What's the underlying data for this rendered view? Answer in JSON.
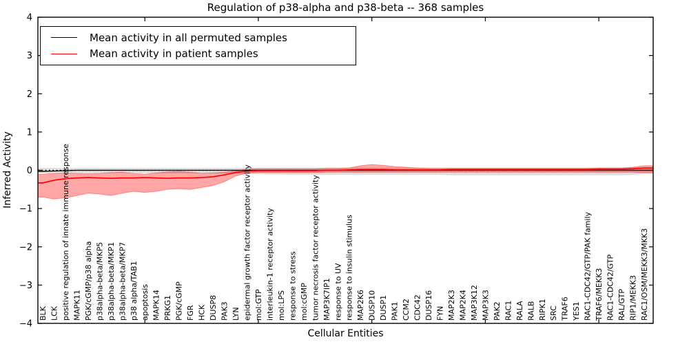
{
  "figure": {
    "title": "Regulation of p38-alpha and p38-beta -- 368 samples",
    "xlabel": "Cellular Entities",
    "ylabel": "Inferred Activity"
  },
  "chart_data": {
    "type": "line",
    "title": "Regulation of p38-alpha and p38-beta -- 368 samples",
    "xlabel": "Cellular Entities",
    "ylabel": "Inferred Activity",
    "ylim": [
      -4,
      4
    ],
    "y_ticks": [
      4,
      3,
      2,
      1,
      0,
      -1,
      -2,
      -3,
      -4
    ],
    "x_major_tick_indices": [
      9,
      19,
      29,
      39,
      49
    ],
    "grid": false,
    "legend_position": "upper left",
    "zero_line": {
      "style": "dotted",
      "color": "#000000",
      "y": 0
    },
    "categories": [
      "BLK",
      "LCK",
      "positive regulation of innate immune response",
      "MAPK11",
      "PGK/cGMP/p38 alpha",
      "p38alpha-beta/MKP5",
      "p38alpha-beta/MKP1",
      "p38alpha-beta/MKP7",
      "p38 alpha/TAB1",
      "apoptosis",
      "MAPK14",
      "PRKG1",
      "PGK/cGMP",
      "FGR",
      "HCK",
      "DUSP8",
      "PAK3",
      "LYN",
      "epidermal growth factor receptor activity",
      "mol:GTP",
      "interleukin-1 receptor activity",
      "mol:LPS",
      "response to stress",
      "mol:cGMP",
      "tumor necrosis factor receptor activity",
      "MAP3K7IP1",
      "response to UV",
      "response to insulin stimulus",
      "MAP2K6",
      "DUSP10",
      "DUSP1",
      "PAK1",
      "CCM2",
      "CDC42",
      "DUSP16",
      "FYN",
      "MAP2K3",
      "MAP2K4",
      "MAP3K12",
      "MAP3K3",
      "PAK2",
      "RAC1",
      "RALA",
      "RALB",
      "RIPK1",
      "SRC",
      "TRAF6",
      "YES1",
      "RAC1-CDC42/GTP/PAK family",
      "TRAF6/MEKK3",
      "RAC1-CDC42/GTP",
      "RAL/GTP",
      "RIP1/MEKK3",
      "RAC1/OSM/MEKK3/MKK3"
    ],
    "series": [
      {
        "name": "Mean activity in all permuted samples",
        "color": "#000000",
        "band_color": "rgba(0,0,0,0.13)",
        "mean": [
          -0.03,
          -0.02,
          -0.01,
          0,
          0,
          0,
          0,
          0,
          0,
          0,
          0,
          0,
          0,
          0,
          0,
          0,
          0,
          0,
          0,
          0,
          0,
          0,
          0,
          0,
          0,
          0,
          0,
          0,
          0,
          0,
          0,
          0,
          0,
          0,
          0,
          0,
          0,
          0,
          0,
          0,
          0,
          0,
          0,
          0,
          0,
          0,
          0,
          0,
          0,
          0,
          0,
          0,
          0,
          0
        ],
        "upper": [
          0.06,
          0.06,
          0.06,
          0.06,
          0.06,
          0.06,
          0.06,
          0.06,
          0.06,
          0.06,
          0.06,
          0.06,
          0.06,
          0.06,
          0.06,
          0.06,
          0.06,
          0.06,
          0.07,
          0.07,
          0.07,
          0.07,
          0.07,
          0.07,
          0.07,
          0.07,
          0.07,
          0.07,
          0.07,
          0.07,
          0.07,
          0.07,
          0.07,
          0.07,
          0.07,
          0.07,
          0.07,
          0.07,
          0.07,
          0.07,
          0.07,
          0.07,
          0.07,
          0.07,
          0.07,
          0.07,
          0.07,
          0.07,
          0.07,
          0.07,
          0.07,
          0.07,
          0.08,
          0.08
        ],
        "lower": [
          -0.07,
          -0.07,
          -0.07,
          -0.07,
          -0.07,
          -0.07,
          -0.07,
          -0.07,
          -0.07,
          -0.07,
          -0.08,
          -0.08,
          -0.08,
          -0.08,
          -0.08,
          -0.08,
          -0.09,
          -0.09,
          -0.1,
          -0.1,
          -0.11,
          -0.11,
          -0.12,
          -0.12,
          -0.12,
          -0.12,
          -0.12,
          -0.12,
          -0.12,
          -0.12,
          -0.12,
          -0.12,
          -0.12,
          -0.12,
          -0.12,
          -0.12,
          -0.13,
          -0.13,
          -0.13,
          -0.13,
          -0.13,
          -0.13,
          -0.13,
          -0.13,
          -0.13,
          -0.13,
          -0.13,
          -0.13,
          -0.13,
          -0.13,
          -0.13,
          -0.13,
          -0.12,
          -0.1
        ]
      },
      {
        "name": "Mean activity in patient samples",
        "color": "#ff0000",
        "band_color": "rgba(255,0,0,0.35)",
        "mean": [
          -0.33,
          -0.26,
          -0.22,
          -0.2,
          -0.19,
          -0.2,
          -0.21,
          -0.2,
          -0.2,
          -0.19,
          -0.2,
          -0.21,
          -0.2,
          -0.2,
          -0.19,
          -0.17,
          -0.12,
          -0.06,
          -0.02,
          -0.01,
          -0.01,
          -0.01,
          -0.01,
          -0.01,
          -0.01,
          0,
          0,
          0.01,
          0.02,
          0.02,
          0.02,
          0.01,
          0.01,
          0.01,
          0.01,
          0.01,
          0.02,
          0.02,
          0.02,
          0.02,
          0.02,
          0.02,
          0.02,
          0.02,
          0.02,
          0.02,
          0.02,
          0.02,
          0.02,
          0.03,
          0.03,
          0.03,
          0.04,
          0.06
        ],
        "upper": [
          -0.1,
          -0.08,
          -0.07,
          -0.08,
          -0.09,
          -0.08,
          -0.06,
          -0.05,
          -0.08,
          -0.1,
          -0.07,
          -0.04,
          -0.03,
          -0.05,
          -0.08,
          -0.07,
          -0.05,
          -0.02,
          0.03,
          0.04,
          0.04,
          0.04,
          0.04,
          0.04,
          0.04,
          0.05,
          0.05,
          0.06,
          0.12,
          0.15,
          0.13,
          0.1,
          0.08,
          0.06,
          0.05,
          0.05,
          0.05,
          0.05,
          0.05,
          0.05,
          0.05,
          0.05,
          0.05,
          0.05,
          0.05,
          0.05,
          0.05,
          0.05,
          0.05,
          0.06,
          0.06,
          0.06,
          0.08,
          0.12
        ],
        "lower": [
          -0.7,
          -0.75,
          -0.72,
          -0.66,
          -0.6,
          -0.62,
          -0.66,
          -0.6,
          -0.55,
          -0.58,
          -0.55,
          -0.5,
          -0.48,
          -0.5,
          -0.45,
          -0.4,
          -0.3,
          -0.15,
          -0.07,
          -0.06,
          -0.06,
          -0.06,
          -0.06,
          -0.06,
          -0.06,
          -0.05,
          -0.05,
          -0.05,
          -0.05,
          -0.05,
          -0.05,
          -0.05,
          -0.05,
          -0.05,
          -0.05,
          -0.05,
          -0.05,
          -0.05,
          -0.05,
          -0.05,
          -0.05,
          -0.05,
          -0.05,
          -0.05,
          -0.05,
          -0.05,
          -0.05,
          -0.05,
          -0.05,
          -0.05,
          -0.05,
          -0.05,
          -0.05,
          -0.06
        ]
      }
    ]
  }
}
